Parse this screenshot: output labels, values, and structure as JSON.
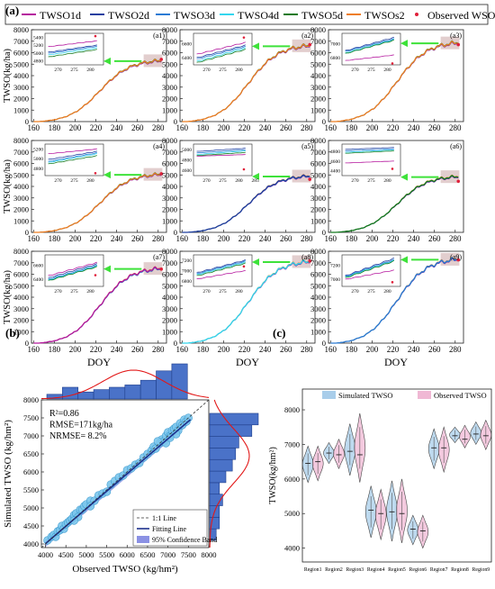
{
  "figure": {
    "panel_a_label": "(a)",
    "panel_b_label": "(b)",
    "panel_c_label": "(c)"
  },
  "legend_a": {
    "entries": [
      {
        "name": "TWSO1d",
        "color": "#b5179e",
        "kind": "line"
      },
      {
        "name": "TWSO2d",
        "color": "#1f3fa0",
        "kind": "line"
      },
      {
        "name": "TWSO3d",
        "color": "#2a7bd4",
        "kind": "line"
      },
      {
        "name": "TWSO4d",
        "color": "#33d6ee",
        "kind": "line"
      },
      {
        "name": "TWSO5d",
        "color": "#137a1f",
        "kind": "line"
      },
      {
        "name": "TWSOs2",
        "color": "#ee7d20",
        "kind": "line"
      },
      {
        "name": "Observed WSO",
        "color": "#e0203a",
        "kind": "point"
      }
    ]
  },
  "chart_data": [
    {
      "type": "line",
      "title": "",
      "panels": [
        {
          "label": "(a1)",
          "main_color": "#ee7d20",
          "final": 5300,
          "obs": 5420,
          "inset_ticks_y": [
            4800,
            5000,
            5200,
            5400
          ],
          "inset_ylim": [
            4700,
            5500
          ],
          "inset_x_ticks": [
            270,
            275,
            280
          ],
          "inset_series": [
            [
              5160,
              5310
            ],
            [
              5020,
              5200
            ],
            [
              4990,
              5170
            ],
            [
              4950,
              5130
            ],
            [
              4900,
              5090
            ]
          ],
          "inset_obs": 5430
        },
        {
          "label": "(a2)",
          "main_color": "#ee7d20",
          "final": 6600,
          "obs": 6700,
          "inset_ticks_y": [
            6400,
            6600
          ],
          "inset_ylim": [
            6300,
            6750
          ],
          "inset_x_ticks": [
            270,
            275,
            280
          ],
          "inset_series": [
            [
              6450,
              6620
            ],
            [
              6400,
              6580
            ],
            [
              6380,
              6560
            ],
            [
              6350,
              6540
            ],
            [
              6330,
              6520
            ]
          ],
          "inset_obs": 6690
        },
        {
          "label": "(a3)",
          "main_color": "#ee7d20",
          "final": 6850,
          "obs": 6700,
          "inset_ticks_y": [
            6800,
            7000
          ],
          "inset_ylim": [
            6700,
            7150
          ],
          "inset_x_ticks": [
            270,
            275,
            280
          ],
          "inset_series": [
            [
              6760,
              6840
            ],
            [
              6900,
              7090
            ],
            [
              6890,
              7070
            ],
            [
              6870,
              7060
            ],
            [
              6860,
              7050
            ]
          ],
          "inset_obs": 6720
        },
        {
          "label": "(a4)",
          "main_color": "#ee7d20",
          "final": 5050,
          "obs": 5100,
          "inset_ticks_y": [
            4800,
            5000,
            5200
          ],
          "inset_ylim": [
            4650,
            5300
          ],
          "inset_x_ticks": [
            270,
            275,
            280
          ],
          "inset_series": [
            [
              5100,
              5200
            ],
            [
              4980,
              5150
            ],
            [
              4940,
              5120
            ],
            [
              4920,
              5100
            ],
            [
              4890,
              5060
            ]
          ],
          "inset_obs": 4700
        },
        {
          "label": "(a5)",
          "main_color": "#1f3fa0",
          "final": 4900,
          "obs": 4620,
          "inset_ticks_y": [
            4600,
            4800,
            5000
          ],
          "inset_ylim": [
            4500,
            5100
          ],
          "inset_x_ticks": [
            270,
            275,
            280,
            285
          ],
          "inset_series": [
            [
              4870,
              4900
            ],
            [
              4960,
              5020
            ],
            [
              4930,
              4990
            ],
            [
              4900,
              4970
            ],
            [
              4880,
              4940
            ]
          ],
          "inset_obs": 4620
        },
        {
          "label": "(a6)",
          "main_color": "#137a1f",
          "final": 4850,
          "obs": 4450,
          "inset_ticks_y": [
            4400,
            4600,
            4800
          ],
          "inset_ylim": [
            4300,
            4950
          ],
          "inset_x_ticks": [
            270,
            275,
            280
          ],
          "inset_series": [
            [
              4560,
              4600
            ],
            [
              4840,
              4880
            ],
            [
              4810,
              4850
            ],
            [
              4780,
              4830
            ],
            [
              4760,
              4810
            ]
          ],
          "inset_obs": 4440
        },
        {
          "label": "(a7)",
          "main_color": "#b5179e",
          "final": 6500,
          "obs": 6450,
          "inset_ticks_y": [
            6400,
            6600
          ],
          "inset_ylim": [
            6300,
            6750
          ],
          "inset_x_ticks": [
            270,
            275,
            280
          ],
          "inset_series": [
            [
              6450,
              6640
            ],
            [
              6420,
              6620
            ],
            [
              6400,
              6600
            ],
            [
              6390,
              6590
            ],
            [
              6380,
              6580
            ]
          ],
          "inset_obs": 6460
        },
        {
          "label": "(a8)",
          "main_color": "#33d6ee",
          "final": 7100,
          "obs": 7150,
          "inset_ticks_y": [
            6800,
            7000,
            7200
          ],
          "inset_ylim": [
            6700,
            7300
          ],
          "inset_x_ticks": [
            270,
            275,
            280
          ],
          "inset_series": [
            [
              6840,
              7000
            ],
            [
              6960,
              7200
            ],
            [
              6940,
              7180
            ],
            [
              6920,
              7160
            ],
            [
              6900,
              7140
            ]
          ],
          "inset_obs": 7080
        },
        {
          "label": "(a9)",
          "main_color": "#2a7bd4",
          "final": 7300,
          "obs": 7250,
          "inset_ticks_y": [
            7000,
            7200
          ],
          "inset_ylim": [
            6900,
            7350
          ],
          "inset_x_ticks": [
            270,
            275,
            280
          ],
          "inset_series": [
            [
              7000,
              7130
            ],
            [
              7050,
              7300
            ],
            [
              7040,
              7280
            ],
            [
              7030,
              7270
            ],
            [
              7020,
              7260
            ]
          ],
          "inset_obs": 6960
        }
      ],
      "x_ticks": [
        160,
        180,
        200,
        220,
        240,
        260,
        280
      ],
      "xlim": [
        158,
        288
      ],
      "y_ticks": [
        0,
        1000,
        2000,
        3000,
        4000,
        5000,
        6000,
        7000,
        8000
      ],
      "ylim": [
        0,
        8000
      ],
      "ylabel": "TWSO(kg/ha)",
      "xlabel": "DOY"
    },
    {
      "type": "scatter",
      "title": "",
      "xlabel": "Observed TWSO (kg/hm²)",
      "ylabel": "Simulated TWSO (kg/hm²)",
      "xlim": [
        3900,
        8000
      ],
      "ylim": [
        3900,
        8000
      ],
      "x_ticks": [
        4000,
        4500,
        5000,
        5500,
        6000,
        6500,
        7000,
        7500,
        8000
      ],
      "y_ticks": [
        4000,
        4500,
        5000,
        5500,
        6000,
        6500,
        7000,
        7500,
        8000
      ],
      "stats": [
        "R²=0.86",
        "RMSE=171kg/ha",
        "NRMSE= 8.2%"
      ],
      "legend": [
        {
          "name": "1:1 Line",
          "kind": "dashed"
        },
        {
          "name": "Fitting Line",
          "kind": "line"
        },
        {
          "name": "95% Confidence Band",
          "kind": "band"
        }
      ],
      "points": [
        [
          4050,
          4100
        ],
        [
          4150,
          4200
        ],
        [
          4200,
          4250
        ],
        [
          4250,
          4200
        ],
        [
          4300,
          4350
        ],
        [
          4350,
          4380
        ],
        [
          4400,
          4500
        ],
        [
          4450,
          4420
        ],
        [
          4500,
          4550
        ],
        [
          4550,
          4600
        ],
        [
          4600,
          4650
        ],
        [
          4650,
          4700
        ],
        [
          4700,
          4800
        ],
        [
          4750,
          4850
        ],
        [
          4800,
          4750
        ],
        [
          4850,
          4950
        ],
        [
          4900,
          4950
        ],
        [
          4950,
          5050
        ],
        [
          5000,
          5100
        ],
        [
          5100,
          5200
        ],
        [
          5200,
          5200
        ],
        [
          5300,
          5350
        ],
        [
          5400,
          5400
        ],
        [
          5500,
          5450
        ],
        [
          5600,
          5650
        ],
        [
          5700,
          5750
        ],
        [
          5800,
          5850
        ],
        [
          5900,
          5900
        ],
        [
          6000,
          6050
        ],
        [
          6100,
          6100
        ],
        [
          6200,
          6200
        ],
        [
          6300,
          6250
        ],
        [
          6400,
          6400
        ],
        [
          6500,
          6500
        ],
        [
          6600,
          6600
        ],
        [
          6650,
          6700
        ],
        [
          6700,
          6650
        ],
        [
          6800,
          6800
        ],
        [
          6850,
          6900
        ],
        [
          6900,
          6850
        ],
        [
          6950,
          7000
        ],
        [
          7000,
          7100
        ],
        [
          7050,
          7000
        ],
        [
          7100,
          7150
        ],
        [
          7150,
          7200
        ],
        [
          7200,
          7250
        ],
        [
          7250,
          7150
        ],
        [
          7300,
          7350
        ],
        [
          7350,
          7300
        ],
        [
          7400,
          7450
        ],
        [
          7450,
          7400
        ],
        [
          7500,
          7500
        ],
        [
          7200,
          7050
        ],
        [
          6950,
          6800
        ],
        [
          6750,
          6850
        ],
        [
          7050,
          6950
        ],
        [
          4700,
          4650
        ],
        [
          5100,
          5050
        ]
      ],
      "fit": {
        "slope": 0.97,
        "intercept": 130
      },
      "hist_top": [
        2,
        5,
        3,
        4,
        5,
        6,
        8,
        12,
        15
      ],
      "hist_right": [
        2,
        3,
        3,
        4,
        3,
        5,
        7,
        8,
        9,
        13,
        15
      ]
    },
    {
      "type": "violin",
      "title": "",
      "ylabel": "TWSO(kg/hm²)",
      "ylim": [
        3600,
        8600
      ],
      "y_ticks": [
        4000,
        5000,
        6000,
        7000,
        8000
      ],
      "categories": [
        "Region1",
        "Region2",
        "Region3",
        "Region4",
        "Region5",
        "Region6",
        "Region7",
        "Region8",
        "Region9"
      ],
      "series": [
        {
          "name": "Simulated TWSO",
          "color": "#a8cdea",
          "medians": [
            6450,
            6750,
            6800,
            5100,
            5050,
            4550,
            6900,
            7250,
            7300
          ],
          "lows": [
            5900,
            6450,
            6100,
            4300,
            4200,
            4100,
            6300,
            7050,
            7000
          ],
          "highs": [
            6950,
            7050,
            7600,
            5800,
            5950,
            4950,
            7450,
            7500,
            7650
          ]
        },
        {
          "name": "Observed TWSO",
          "color": "#f0b8d4",
          "medians": [
            6500,
            6700,
            6700,
            5000,
            5000,
            4500,
            6900,
            7150,
            7250
          ],
          "lows": [
            5950,
            6300,
            5900,
            4250,
            4150,
            4000,
            6200,
            6900,
            6850
          ],
          "highs": [
            6950,
            7150,
            7900,
            5700,
            6000,
            4950,
            7500,
            7550,
            7700
          ]
        }
      ]
    }
  ]
}
